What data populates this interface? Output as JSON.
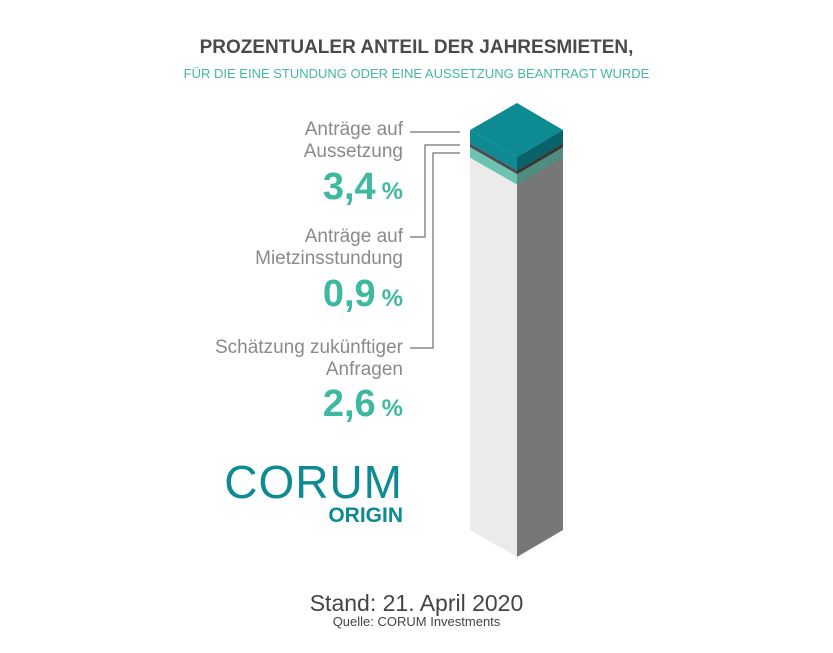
{
  "chart_data": {
    "type": "stacked_column",
    "title": "PROZENTUALER ANTEIL DER JAHRESMIETEN,",
    "subtitle": "FÜR DIE EINE STUNDUNG ODER EINE AUSSETZUNG BEANTRAGT WURDE",
    "ylim": [
      0,
      100
    ],
    "unit": "%",
    "series": [
      {
        "name": "Anträge auf\nAussetzung",
        "color": "#0e8a93",
        "values": [
          3.4
        ],
        "value_labels": [
          "3,4"
        ]
      },
      {
        "name": "Anträge auf\nMietzinsstundung",
        "color": "#4d4d4d",
        "values": [
          0.9
        ],
        "value_labels": [
          "0,9"
        ]
      },
      {
        "name": "Schätzung zukünftiger\nAnfragen",
        "color": "#6cc4b0",
        "values": [
          2.6
        ],
        "value_labels": [
          "2,6"
        ]
      }
    ]
  },
  "logo": {
    "brand": "CORUM",
    "sub": "ORIGIN"
  },
  "footer": {
    "date": "Stand: 21. April 2020",
    "source": "Quelle: CORUM Investments"
  }
}
